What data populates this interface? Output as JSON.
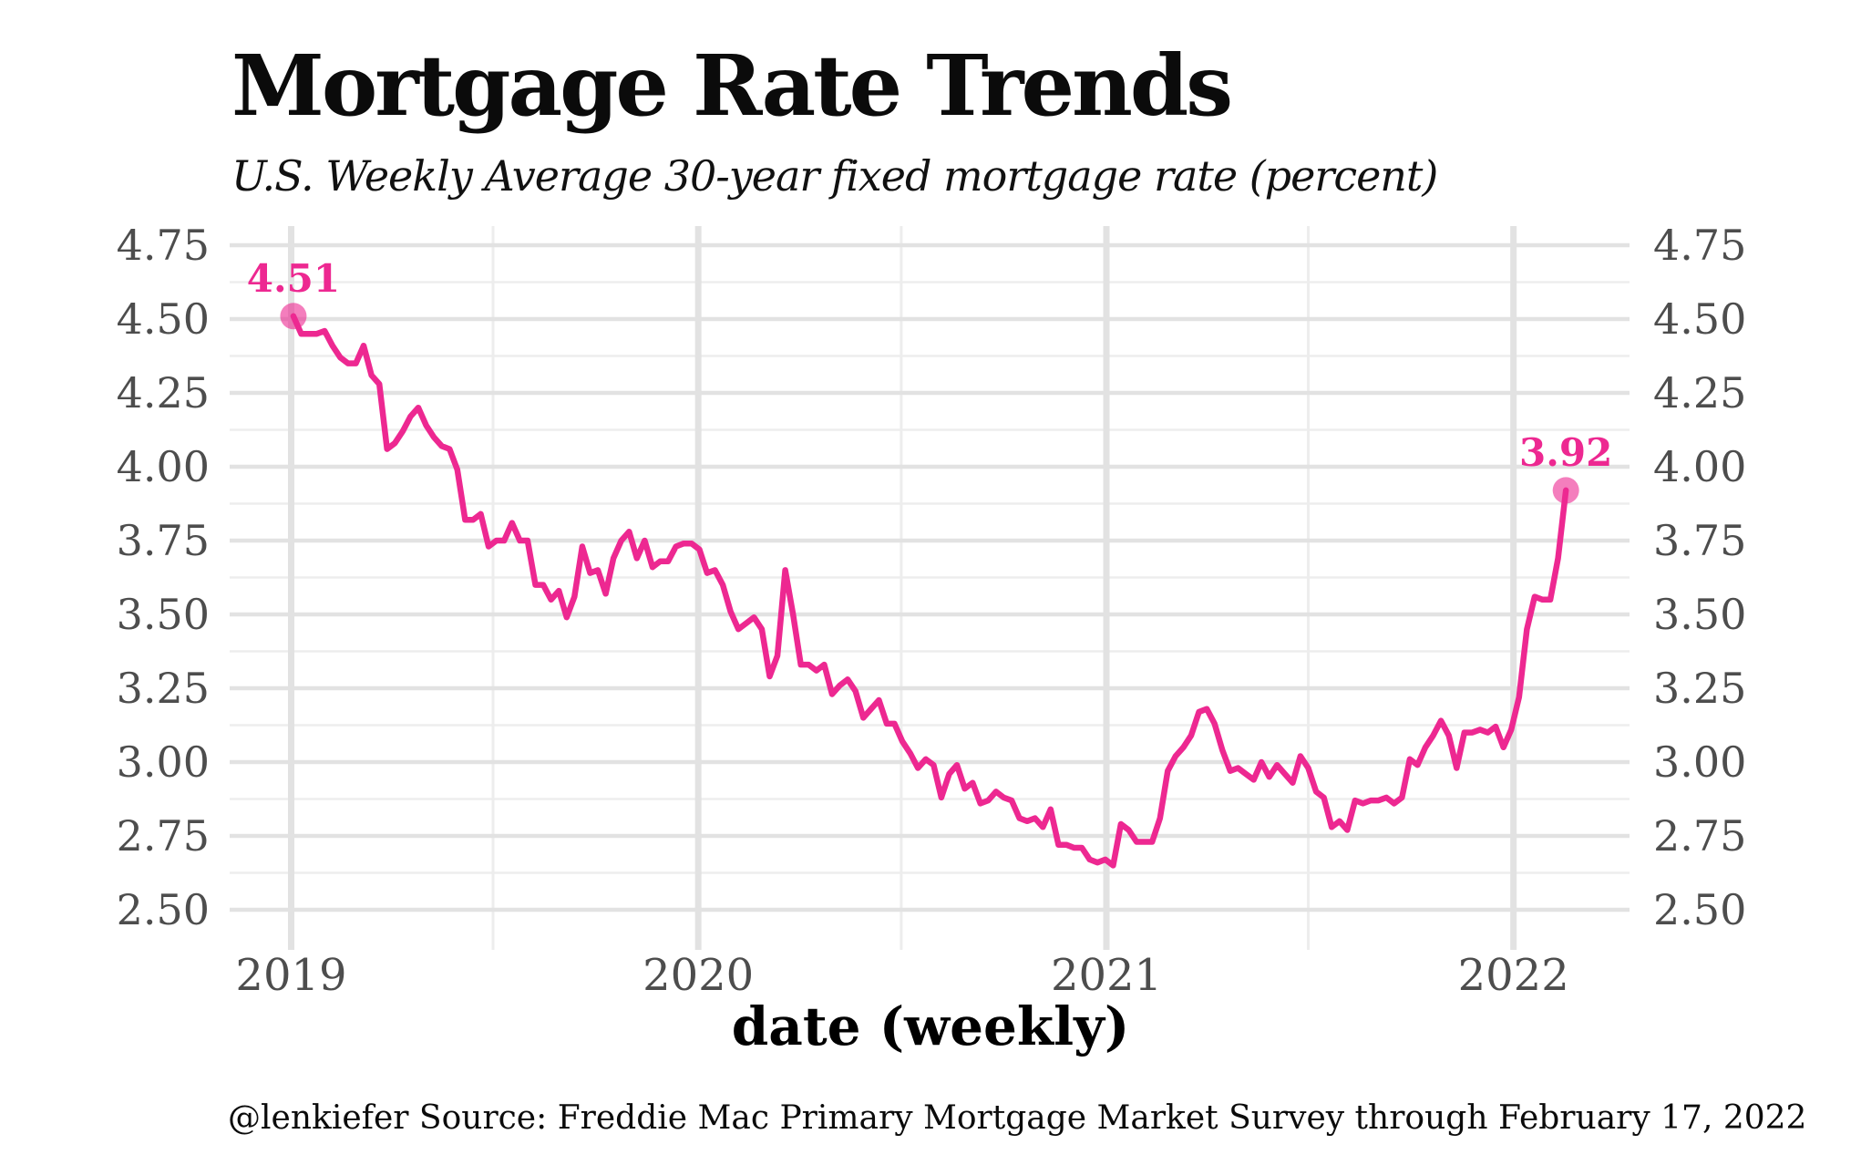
{
  "page": {
    "title": "Mortgage Rate Trends",
    "subtitle": "U.S. Weekly Average 30-year fixed mortgage rate (percent)",
    "caption": "@lenkiefer Source: Freddie Mac Primary Mortgage Market Survey through February 17, 2022"
  },
  "colors": {
    "accent": "#ED2891",
    "grid_major": "#E2E2E2",
    "grid_minor": "#EDEDED",
    "tick_label": "#4D4D4D",
    "text": "#000000"
  },
  "chart_data": {
    "type": "line",
    "title": "Mortgage Rate Trends",
    "subtitle": "U.S. Weekly Average 30-year fixed mortgage rate (percent)",
    "xlabel": "date (weekly)",
    "ylabel": "",
    "caption": "@lenkiefer Source: Freddie Mac Primary Mortgage Market Survey through February 17, 2022",
    "grid": true,
    "legend": false,
    "ylim": [
      2.5,
      4.75
    ],
    "y_major_ticks": [
      "4.75",
      "4.50",
      "4.25",
      "4.00",
      "3.75",
      "3.50",
      "3.25",
      "3.00",
      "2.75",
      "2.50"
    ],
    "y_minor_interval": 0.125,
    "y_axis_sides": [
      "left",
      "right"
    ],
    "x_ticks": [
      {
        "label": "2019",
        "date": "2019-01-01"
      },
      {
        "label": "2020",
        "date": "2020-01-01"
      },
      {
        "label": "2021",
        "date": "2021-01-01"
      },
      {
        "label": "2022",
        "date": "2022-01-01"
      }
    ],
    "x_minor_dates": [
      "2019-07-01",
      "2020-07-01",
      "2021-07-01"
    ],
    "x_start_date": "2019-01-03",
    "x_step_days": 7,
    "series": [
      {
        "name": "U.S. weekly average 30-year fixed mortgage rate",
        "values": [
          4.51,
          4.45,
          4.45,
          4.45,
          4.46,
          4.41,
          4.37,
          4.35,
          4.35,
          4.41,
          4.31,
          4.28,
          4.06,
          4.08,
          4.12,
          4.17,
          4.2,
          4.14,
          4.1,
          4.07,
          4.06,
          3.99,
          3.82,
          3.82,
          3.84,
          3.73,
          3.75,
          3.75,
          3.81,
          3.75,
          3.75,
          3.6,
          3.6,
          3.55,
          3.58,
          3.49,
          3.56,
          3.73,
          3.64,
          3.65,
          3.57,
          3.69,
          3.75,
          3.78,
          3.69,
          3.75,
          3.66,
          3.68,
          3.68,
          3.73,
          3.74,
          3.74,
          3.72,
          3.64,
          3.65,
          3.6,
          3.51,
          3.45,
          3.47,
          3.49,
          3.45,
          3.29,
          3.36,
          3.65,
          3.5,
          3.33,
          3.33,
          3.31,
          3.33,
          3.23,
          3.26,
          3.28,
          3.24,
          3.15,
          3.18,
          3.21,
          3.13,
          3.13,
          3.07,
          3.03,
          2.98,
          3.01,
          2.99,
          2.88,
          2.96,
          2.99,
          2.91,
          2.93,
          2.86,
          2.87,
          2.9,
          2.88,
          2.87,
          2.81,
          2.8,
          2.81,
          2.78,
          2.84,
          2.72,
          2.72,
          2.71,
          2.71,
          2.67,
          2.66,
          2.67,
          2.65,
          2.79,
          2.77,
          2.73,
          2.73,
          2.73,
          2.81,
          2.97,
          3.02,
          3.05,
          3.09,
          3.17,
          3.18,
          3.13,
          3.04,
          2.97,
          2.98,
          2.96,
          2.94,
          3.0,
          2.95,
          2.99,
          2.96,
          2.93,
          3.02,
          2.98,
          2.9,
          2.88,
          2.78,
          2.8,
          2.77,
          2.87,
          2.86,
          2.87,
          2.87,
          2.88,
          2.86,
          2.88,
          3.01,
          2.99,
          3.05,
          3.09,
          3.14,
          3.09,
          2.98,
          3.1,
          3.1,
          3.11,
          3.1,
          3.12,
          3.05,
          3.11,
          3.22,
          3.45,
          3.56,
          3.55,
          3.55,
          3.69,
          3.92
        ]
      }
    ],
    "annotations": [
      {
        "label": "4.51",
        "date": "2019-01-03",
        "value": 4.51
      },
      {
        "label": "3.92",
        "date": "2022-02-17",
        "value": 3.92
      }
    ]
  }
}
